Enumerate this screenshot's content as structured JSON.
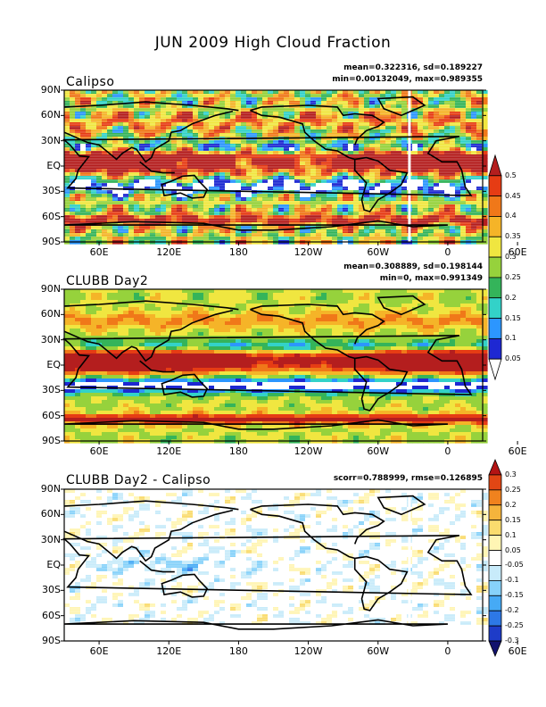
{
  "title": "JUN 2009 High Cloud Fraction",
  "latitude_ticks": [
    "90N",
    "60N",
    "30N",
    "EQ",
    "30S",
    "60S",
    "90S"
  ],
  "longitude_ticks": [
    "60E",
    "120E",
    "180",
    "120W",
    "60W",
    "0",
    "60E"
  ],
  "panels": [
    {
      "name": "Calipso",
      "stats_line1": "mean=0.322316, sd=0.189227",
      "stats_line2": "min=0.00132049, max=0.989355"
    },
    {
      "name": "CLUBB Day2",
      "stats_line1": "mean=0.308889, sd=0.198144",
      "stats_line2": "min=0, max=0.991349"
    },
    {
      "name": "CLUBB Day2 - Calipso",
      "stats_line1": "scorr=0.788999, rmse=0.126895",
      "stats_line2": ""
    }
  ],
  "colorbar_fraction": {
    "labels": [
      "0.05",
      "0.1",
      "0.15",
      "0.2",
      "0.25",
      "0.3",
      "0.35",
      "0.4",
      "0.45",
      "0.5"
    ],
    "colors": [
      "#ffffff",
      "#1e28d2",
      "#2c96ff",
      "#33d2c8",
      "#34b45a",
      "#96d23c",
      "#f0e640",
      "#f5b428",
      "#f07819",
      "#e63c14",
      "#b41e1e"
    ]
  },
  "colorbar_difference": {
    "labels": [
      "-0.3",
      "-0.25",
      "-0.2",
      "-0.15",
      "-0.1",
      "-0.05",
      "0.05",
      "0.1",
      "0.15",
      "0.2",
      "0.25",
      "0.3"
    ],
    "colors": [
      "#12126e",
      "#1e3cc8",
      "#2d78e6",
      "#46aaf5",
      "#87d2fa",
      "#c8ebfa",
      "#ffffff",
      "#fff5b4",
      "#fadc6e",
      "#f5b43c",
      "#f0821e",
      "#e14614",
      "#b41414"
    ]
  },
  "chart_data": {
    "type": "heatmap",
    "title": "JUN 2009 High Cloud Fraction",
    "x_axis_ticks": [
      "60E",
      "120E",
      "180",
      "120W",
      "60W",
      "0",
      "60E"
    ],
    "y_axis_ticks": [
      "90N",
      "60N",
      "30N",
      "EQ",
      "30S",
      "60S",
      "90S"
    ],
    "series": [
      {
        "name": "Calipso",
        "mean": 0.322316,
        "sd": 0.189227,
        "min": 0.00132049,
        "max": 0.989355
      },
      {
        "name": "CLUBB Day2",
        "mean": 0.308889,
        "sd": 0.198144,
        "min": 0,
        "max": 0.991349
      },
      {
        "name": "CLUBB Day2 - Calipso",
        "scorr": 0.788999,
        "rmse": 0.126895
      }
    ],
    "colorbar_range_fraction": [
      0.05,
      0.5
    ],
    "colorbar_range_difference": [
      -0.3,
      0.3
    ]
  }
}
